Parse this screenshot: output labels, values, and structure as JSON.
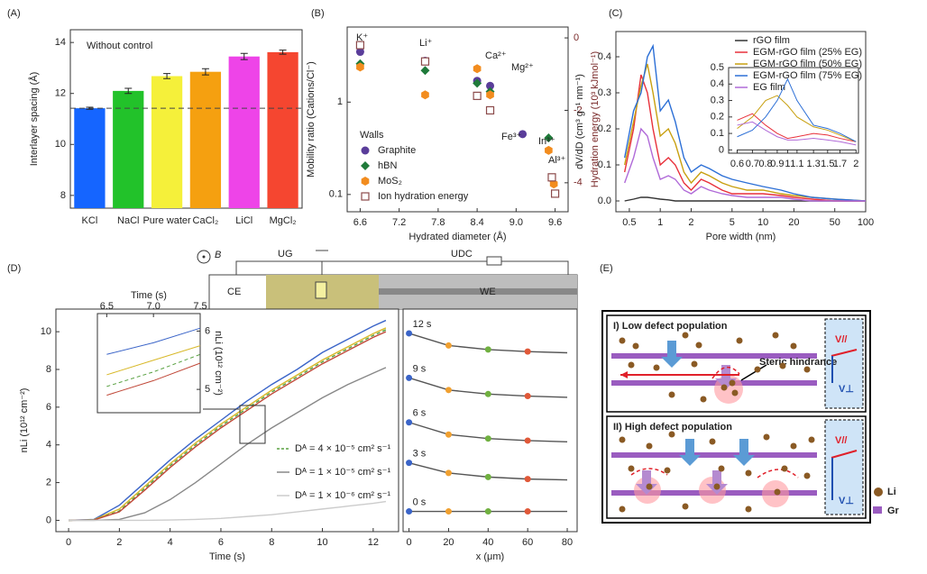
{
  "chart_data": [
    {
      "type": "bar",
      "panel": "(A)",
      "categories": [
        "KCl",
        "NaCl",
        "Pure water",
        "CaCl₂",
        "LiCl",
        "MgCl₂"
      ],
      "values": [
        11.42,
        12.1,
        12.68,
        12.85,
        13.45,
        13.62
      ],
      "errors": [
        0.04,
        0.1,
        0.1,
        0.12,
        0.12,
        0.08
      ],
      "colors": [
        "#1565ff",
        "#22c22a",
        "#f5f03a",
        "#f5a010",
        "#ee44e8",
        "#f54630"
      ],
      "ylim": [
        7.5,
        14.5
      ],
      "yticks": [
        8,
        10,
        12,
        14
      ],
      "ylabel": "Interlayer spacing (Å)",
      "annotation": "Without control",
      "reference_line": 11.42
    },
    {
      "type": "scatter",
      "panel": "(B)",
      "xlim": [
        6.4,
        9.8
      ],
      "xticks": [
        6.6,
        7.2,
        7.8,
        8.4,
        {
          "value": 9,
          "label": "9.0"
        },
        9.6
      ],
      "yscale": "log",
      "ylim": [
        0.065,
        6.5
      ],
      "yticks": [
        0.1,
        1
      ],
      "y2lim": [
        -4.8,
        0.3
      ],
      "y2ticks": [
        0,
        -2,
        -4
      ],
      "xlabel": "Hydrated diameter (Å)",
      "ylabel": "Mobility ratio (Cations/Cl⁻)",
      "y2label": "Hydration energy (10³ kJmol⁻¹)",
      "legend": "center-left",
      "legend_title": "Walls",
      "point_labels": [
        "K⁺",
        "Li⁺",
        "Ca²⁺",
        "Mg²⁺",
        "Fe³⁺",
        "In³⁺",
        "Al³⁺"
      ],
      "series": [
        {
          "name": "Graphite",
          "color": "#5a3d9a",
          "marker": "circle",
          "x": [
            6.6,
            7.6,
            8.4,
            8.6,
            9.1,
            9.55
          ],
          "values": [
            3.5,
            2.8,
            1.7,
            1.5,
            0.45,
            0.15
          ]
        },
        {
          "name": "hBN",
          "color": "#1f7a3a",
          "marker": "diamond",
          "x": [
            6.6,
            7.6,
            8.4,
            8.6,
            9.5
          ],
          "values": [
            2.6,
            2.2,
            1.6,
            1.3,
            0.41
          ]
        },
        {
          "name": "MoS₂",
          "color": "#f28c1e",
          "marker": "hexagon",
          "x": [
            6.6,
            7.6,
            8.4,
            8.6,
            9.5,
            9.58
          ],
          "values": [
            2.4,
            1.2,
            2.3,
            1.2,
            0.3,
            0.13
          ]
        },
        {
          "name": "Ion hydration energy",
          "color": "#8b4a4a",
          "marker": "square-open",
          "axis": "y2",
          "x": [
            6.6,
            7.6,
            8.4,
            8.6,
            9.55,
            9.6
          ],
          "values": [
            -0.2,
            -0.65,
            -1.6,
            -2,
            -3.85,
            -4.3
          ]
        }
      ]
    },
    {
      "type": "line",
      "panel": "(C)",
      "xscale": "log",
      "xlim": [
        0.37,
        100
      ],
      "xticks": [
        0.5,
        1,
        2,
        5,
        10,
        20,
        50,
        100
      ],
      "ylim": [
        -0.03,
        0.47
      ],
      "yticks": [
        {
          "value": 0,
          "label": "0.0"
        },
        0.1,
        0.2,
        0.3,
        0.4
      ],
      "xlabel": "Pore width (nm)",
      "ylabel": "dV/dD (cm³ g⁻¹ nm⁻¹)",
      "legend": "upper-right",
      "x": [
        0.45,
        0.55,
        0.65,
        0.75,
        0.85,
        1,
        1.2,
        1.4,
        1.7,
        2,
        2.5,
        3,
        4,
        5,
        7,
        10,
        15,
        20,
        30,
        50,
        100
      ],
      "series": [
        {
          "name": "rGO film",
          "color": "#333333",
          "values": [
            0,
            0.005,
            0.01,
            0.01,
            0.008,
            0.005,
            0.003,
            0,
            0,
            0,
            0,
            0,
            0,
            0,
            0,
            0,
            0,
            0,
            0,
            0,
            0
          ]
        },
        {
          "name": "EGM-rGO film (25% EG)",
          "color": "#e8303a",
          "values": [
            0.08,
            0.2,
            0.35,
            0.3,
            0.2,
            0.1,
            0.12,
            0.1,
            0.05,
            0.03,
            0.06,
            0.05,
            0.03,
            0.02,
            0.02,
            0.02,
            0.015,
            0.01,
            0.005,
            0,
            0
          ]
        },
        {
          "name": "EGM-rGO film (50% EG)",
          "color": "#c8a010",
          "values": [
            0.1,
            0.22,
            0.32,
            0.38,
            0.3,
            0.18,
            0.2,
            0.16,
            0.08,
            0.05,
            0.08,
            0.07,
            0.05,
            0.04,
            0.03,
            0.03,
            0.02,
            0.015,
            0.01,
            0.005,
            0
          ]
        },
        {
          "name": "EGM-rGO film (75% EG)",
          "color": "#2c6fd6",
          "values": [
            0.12,
            0.25,
            0.3,
            0.4,
            0.43,
            0.25,
            0.28,
            0.22,
            0.12,
            0.08,
            0.1,
            0.09,
            0.07,
            0.06,
            0.05,
            0.04,
            0.03,
            0.02,
            0.01,
            0.005,
            0
          ]
        },
        {
          "name": "EG film",
          "color": "#b06ad8",
          "values": [
            0.05,
            0.12,
            0.2,
            0.18,
            0.12,
            0.06,
            0.07,
            0.06,
            0.03,
            0.02,
            0.04,
            0.03,
            0.02,
            0.015,
            0.01,
            0.01,
            0.01,
            0.005,
            0,
            0,
            0
          ]
        }
      ]
    },
    {
      "type": "line",
      "xscale": "log",
      "xlim": [
        0.55,
        2.05
      ],
      "xticks": [
        0.6,
        0.7,
        0.8,
        0.9,
        1,
        1.1,
        1.3,
        1.5,
        1.7,
        2
      ],
      "ylim": [
        -0.02,
        0.5
      ],
      "yticks": [
        0,
        0.1,
        0.2,
        0.3,
        0.4,
        0.5
      ],
      "x": [
        0.6,
        0.7,
        0.8,
        0.9,
        1,
        1.1,
        1.3,
        1.5,
        1.7,
        2
      ],
      "series": [
        {
          "color": "#333333",
          "values": [
            0,
            0,
            0,
            0,
            0,
            0,
            0,
            0,
            0,
            0
          ]
        },
        {
          "color": "#e8303a",
          "values": [
            0.18,
            0.22,
            0.15,
            0.1,
            0.07,
            0.08,
            0.1,
            0.09,
            0.07,
            0.05
          ]
        },
        {
          "color": "#c8a010",
          "values": [
            0.13,
            0.2,
            0.3,
            0.33,
            0.27,
            0.2,
            0.14,
            0.12,
            0.09,
            0.05
          ]
        },
        {
          "color": "#2c6fd6",
          "values": [
            0.08,
            0.12,
            0.2,
            0.3,
            0.43,
            0.3,
            0.15,
            0.13,
            0.1,
            0.05
          ]
        },
        {
          "color": "#b06ad8",
          "values": [
            0.15,
            0.17,
            0.12,
            0.08,
            0.06,
            0.06,
            0.07,
            0.06,
            0.05,
            0.03
          ]
        }
      ]
    },
    {
      "type": "line",
      "panel": "(D)",
      "xlim": [
        -0.5,
        13
      ],
      "xticks": [
        0,
        2,
        4,
        6,
        8,
        10,
        12
      ],
      "ylim": [
        -0.6,
        11.2
      ],
      "yticks": [
        0,
        2,
        4,
        6,
        8,
        10
      ],
      "xlabel": "Time (s)",
      "ylabel": "nLi (10¹² cm⁻²)",
      "legend": "lower-right",
      "x": [
        0,
        1,
        2,
        3,
        4,
        5,
        6,
        7,
        8,
        9,
        10,
        11,
        12,
        12.5
      ],
      "series": [
        {
          "color": "#3a64c8",
          "values": [
            0,
            0.05,
            0.8,
            2,
            3.2,
            4.3,
            5.3,
            6.3,
            7.2,
            8,
            8.9,
            9.6,
            10.3,
            10.6
          ]
        },
        {
          "color": "#d8b828",
          "values": [
            0,
            0.03,
            0.6,
            1.8,
            3,
            4.1,
            5.1,
            6,
            6.9,
            7.7,
            8.5,
            9.2,
            9.9,
            10.2
          ]
        },
        {
          "name": "Dᴬ = 4 × 10⁻⁵ cm² s⁻¹",
          "color": "#58a040",
          "dash": true,
          "values": [
            0,
            0.02,
            0.5,
            1.7,
            2.9,
            4,
            5,
            5.9,
            6.8,
            7.6,
            8.4,
            9.1,
            9.8,
            10.1
          ]
        },
        {
          "color": "#c04838",
          "values": [
            0,
            0.02,
            0.45,
            1.6,
            2.8,
            3.9,
            4.9,
            5.8,
            6.7,
            7.5,
            8.3,
            9,
            9.7,
            10
          ]
        },
        {
          "name": "Dᴬ = 1 × 10⁻⁵ cm² s⁻¹",
          "color": "#888888",
          "values": [
            0,
            0,
            0.05,
            0.4,
            1.1,
            2,
            3,
            4,
            4.9,
            5.7,
            6.5,
            7.2,
            7.8,
            8.1
          ]
        },
        {
          "name": "Dᴬ = 1 × 10⁻⁶ cm² s⁻¹",
          "color": "#cccccc",
          "values": [
            0,
            0,
            0,
            0,
            0.02,
            0.05,
            0.1,
            0.2,
            0.3,
            0.45,
            0.6,
            0.75,
            0.9,
            1
          ]
        }
      ]
    },
    {
      "type": "line",
      "xaxis_side": "top",
      "yaxis_side": "right",
      "xlim": [
        6.4,
        7.5
      ],
      "xticks": [
        6.5,
        {
          "value": 7,
          "label": "7.0"
        },
        7.5
      ],
      "xlabel": "Time (s)",
      "ylim": [
        4.6,
        6.3
      ],
      "yticks": [
        5,
        6
      ],
      "ylabel": "nLi (10¹² cm⁻²)",
      "x": [
        6.5,
        7,
        7.5
      ],
      "series": [
        {
          "color": "#3a64c8",
          "values": [
            5.6,
            5.8,
            6.05
          ]
        },
        {
          "color": "#d8b828",
          "values": [
            5.25,
            5.5,
            5.75
          ]
        },
        {
          "color": "#58a040",
          "dash": true,
          "values": [
            5.05,
            5.3,
            5.6
          ]
        },
        {
          "color": "#c04838",
          "values": [
            4.9,
            5.15,
            5.45
          ]
        }
      ]
    },
    {
      "type": "line",
      "xlim": [
        -3,
        85
      ],
      "xticks": [
        0,
        20,
        40,
        60,
        80
      ],
      "ylim": [
        -0.3,
        5.2
      ],
      "xlabel": "x (μm)",
      "legend": "inline",
      "markers": true,
      "marker_colors": [
        "#3a64c8",
        "#f0a030",
        "#70b040",
        "#e05838"
      ],
      "x": [
        0,
        20,
        40,
        60,
        80
      ],
      "series": [
        {
          "name": "12 s",
          "color": "#555555",
          "values": [
            4.6,
            4.3,
            4.2,
            4.15,
            4.12
          ]
        },
        {
          "name": "9 s",
          "color": "#555555",
          "values": [
            3.5,
            3.2,
            3.1,
            3.05,
            3.02
          ]
        },
        {
          "name": "6 s",
          "color": "#555555",
          "values": [
            2.4,
            2.1,
            2,
            1.95,
            1.92
          ]
        },
        {
          "name": "3 s",
          "color": "#555555",
          "values": [
            1.4,
            1.15,
            1.05,
            1,
            0.98
          ]
        },
        {
          "name": "0 s",
          "color": "#555555",
          "values": [
            0.2,
            0.2,
            0.2,
            0.2,
            0.2
          ]
        }
      ]
    }
  ],
  "schematic": {
    "field": "B",
    "gate_voltage": "UG",
    "drain_voltage": "UDC",
    "counter_electrode": "CE",
    "working_electrode": "WE"
  },
  "diagram": {
    "panel": "(E)",
    "regions": [
      {
        "title": "I) Low defect population",
        "note": "Steric hindrance"
      },
      {
        "title": "II) High defect population"
      }
    ],
    "velocity_parallel": "V//",
    "velocity_perp": "V⊥",
    "legend": [
      "Li",
      "Gr"
    ]
  }
}
